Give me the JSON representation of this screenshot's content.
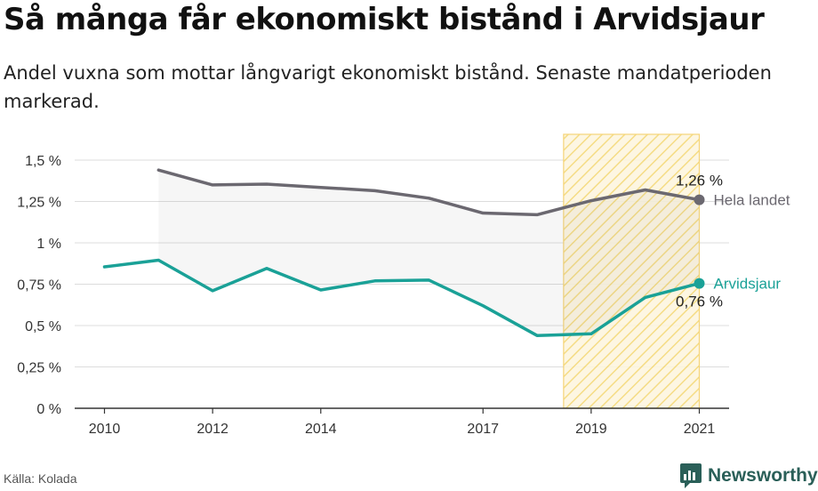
{
  "title": "Så många får ekonomiskt bistånd i Arvidsjaur",
  "subtitle": "Andel vuxna som mottar långvarigt ekonomiskt bistånd. Senaste mandatperioden markerad.",
  "source": "Källa: Kolada",
  "brand": "Newsworthy",
  "colors": {
    "national": "#6b6870",
    "local": "#1aa197",
    "highlight": "#f5c842",
    "brand": "#2a5f58"
  },
  "chart_data": {
    "type": "line",
    "x": [
      2010,
      2011,
      2012,
      2013,
      2014,
      2015,
      2016,
      2017,
      2018,
      2019,
      2020,
      2021
    ],
    "xticks": [
      "2010",
      "2012",
      "2014",
      "2017",
      "2019",
      "2021"
    ],
    "ylim": [
      0,
      1.5
    ],
    "yticks": [
      "0 %",
      "0,25 %",
      "0,5 %",
      "0,75 %",
      "1 %",
      "1,25 %",
      "1,5 %"
    ],
    "grid": true,
    "highlight_period": [
      2019,
      2021
    ],
    "series": [
      {
        "name": "Hela landet",
        "values": [
          null,
          1.44,
          1.35,
          1.355,
          1.335,
          1.315,
          1.27,
          1.18,
          1.17,
          1.255,
          1.32,
          1.26
        ],
        "end_label": "1,26 %"
      },
      {
        "name": "Arvidsjaur",
        "values": [
          0.855,
          0.895,
          0.71,
          0.845,
          0.715,
          0.77,
          0.775,
          0.62,
          0.44,
          0.45,
          0.67,
          0.755
        ],
        "end_label": "0,76 %"
      }
    ]
  }
}
